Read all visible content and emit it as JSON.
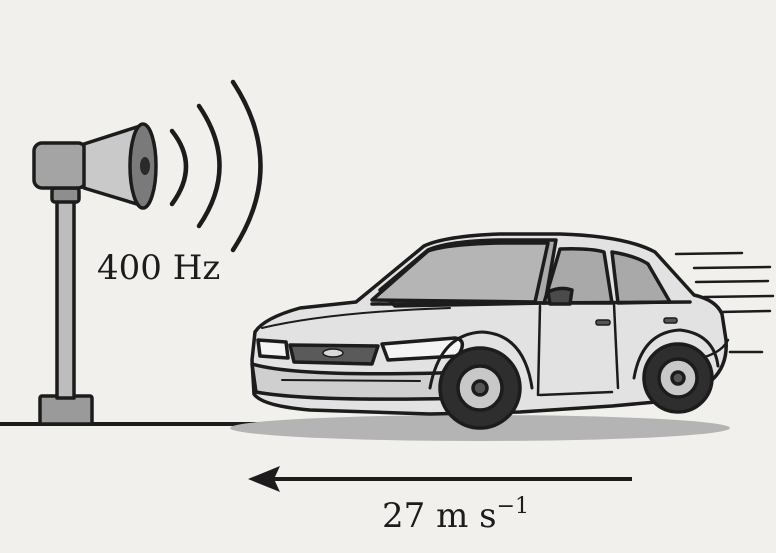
{
  "frequency_label": "400 Hz",
  "speed_label": "27 m s",
  "speed_exponent": "−1",
  "colors": {
    "background": "#f1f0ec",
    "ink": "#1c1c1c",
    "car_body": "#e2e2e2",
    "car_shade": "#bdbdbd",
    "glass": "#a9a9a9",
    "ground_shadow": "#b4b4b4"
  },
  "icons": [
    "loudspeaker-icon",
    "sound-wave-icon",
    "car-icon",
    "arrow-left-icon"
  ]
}
